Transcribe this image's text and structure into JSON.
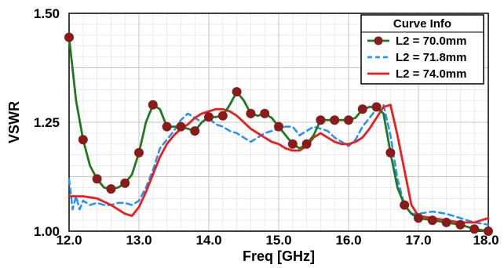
{
  "chart_data": {
    "type": "line",
    "title": "",
    "xlabel": "Freq [GHz]",
    "ylabel": "VSWR",
    "xlim": [
      12.0,
      18.0
    ],
    "ylim": [
      1.0,
      1.5
    ],
    "x_ticks": [
      "12.0",
      "13.0",
      "14.0",
      "15.0",
      "16.0",
      "17.0",
      "18.0"
    ],
    "y_ticks": [
      "1.00",
      "1.25",
      "1.50"
    ],
    "grid": true,
    "legend": {
      "title": "Curve Info",
      "position": "top-right"
    },
    "series": [
      {
        "name": "L2 = 70.0mm",
        "color": "#1e7a1e",
        "marker_color": "#8b1a1a",
        "style": "solid-with-markers",
        "points": [
          [
            12.0,
            1.445
          ],
          [
            12.1,
            1.3
          ],
          [
            12.2,
            1.21
          ],
          [
            12.3,
            1.15
          ],
          [
            12.4,
            1.12
          ],
          [
            12.5,
            1.1
          ],
          [
            12.6,
            1.097
          ],
          [
            12.7,
            1.1
          ],
          [
            12.8,
            1.11
          ],
          [
            12.9,
            1.13
          ],
          [
            13.0,
            1.18
          ],
          [
            13.1,
            1.25
          ],
          [
            13.2,
            1.29
          ],
          [
            13.3,
            1.28
          ],
          [
            13.4,
            1.24
          ],
          [
            13.5,
            1.24
          ],
          [
            13.6,
            1.24
          ],
          [
            13.7,
            1.235
          ],
          [
            13.8,
            1.23
          ],
          [
            13.9,
            1.25
          ],
          [
            14.0,
            1.262
          ],
          [
            14.1,
            1.262
          ],
          [
            14.2,
            1.265
          ],
          [
            14.3,
            1.29
          ],
          [
            14.4,
            1.32
          ],
          [
            14.5,
            1.3
          ],
          [
            14.6,
            1.27
          ],
          [
            14.7,
            1.265
          ],
          [
            14.8,
            1.27
          ],
          [
            14.9,
            1.26
          ],
          [
            15.0,
            1.24
          ],
          [
            15.1,
            1.22
          ],
          [
            15.2,
            1.2
          ],
          [
            15.3,
            1.19
          ],
          [
            15.4,
            1.2
          ],
          [
            15.5,
            1.22
          ],
          [
            15.6,
            1.255
          ],
          [
            15.7,
            1.255
          ],
          [
            15.8,
            1.255
          ],
          [
            15.9,
            1.255
          ],
          [
            16.0,
            1.255
          ],
          [
            16.1,
            1.26
          ],
          [
            16.2,
            1.28
          ],
          [
            16.3,
            1.285
          ],
          [
            16.4,
            1.285
          ],
          [
            16.5,
            1.27
          ],
          [
            16.6,
            1.18
          ],
          [
            16.7,
            1.1
          ],
          [
            16.8,
            1.06
          ],
          [
            16.9,
            1.04
          ],
          [
            17.0,
            1.03
          ],
          [
            17.2,
            1.025
          ],
          [
            17.4,
            1.02
          ],
          [
            17.6,
            1.015
          ],
          [
            17.8,
            1.005
          ],
          [
            18.0,
            1.0
          ]
        ],
        "markers": [
          [
            12.0,
            1.445
          ],
          [
            12.2,
            1.21
          ],
          [
            12.4,
            1.12
          ],
          [
            12.6,
            1.097
          ],
          [
            12.8,
            1.11
          ],
          [
            13.0,
            1.18
          ],
          [
            13.2,
            1.29
          ],
          [
            13.4,
            1.24
          ],
          [
            13.6,
            1.24
          ],
          [
            13.8,
            1.23
          ],
          [
            14.0,
            1.262
          ],
          [
            14.2,
            1.265
          ],
          [
            14.4,
            1.32
          ],
          [
            14.6,
            1.27
          ],
          [
            14.8,
            1.27
          ],
          [
            15.0,
            1.24
          ],
          [
            15.2,
            1.2
          ],
          [
            15.4,
            1.2
          ],
          [
            15.6,
            1.255
          ],
          [
            15.8,
            1.255
          ],
          [
            16.0,
            1.255
          ],
          [
            16.2,
            1.28
          ],
          [
            16.4,
            1.285
          ],
          [
            16.6,
            1.18
          ],
          [
            16.8,
            1.06
          ],
          [
            17.0,
            1.03
          ],
          [
            17.2,
            1.025
          ],
          [
            17.4,
            1.02
          ],
          [
            17.6,
            1.015
          ],
          [
            17.8,
            1.005
          ],
          [
            18.0,
            1.0
          ]
        ]
      },
      {
        "name": "L2 = 71.8mm",
        "color": "#1e90ff",
        "style": "dashed",
        "points": [
          [
            12.0,
            1.12
          ],
          [
            12.05,
            1.05
          ],
          [
            12.1,
            1.08
          ],
          [
            12.15,
            1.05
          ],
          [
            12.2,
            1.07
          ],
          [
            12.3,
            1.06
          ],
          [
            12.4,
            1.065
          ],
          [
            12.5,
            1.06
          ],
          [
            12.6,
            1.06
          ],
          [
            12.7,
            1.065
          ],
          [
            12.8,
            1.065
          ],
          [
            12.9,
            1.06
          ],
          [
            13.0,
            1.07
          ],
          [
            13.1,
            1.1
          ],
          [
            13.2,
            1.14
          ],
          [
            13.3,
            1.19
          ],
          [
            13.4,
            1.21
          ],
          [
            13.5,
            1.23
          ],
          [
            13.6,
            1.255
          ],
          [
            13.7,
            1.27
          ],
          [
            13.8,
            1.26
          ],
          [
            13.9,
            1.25
          ],
          [
            14.0,
            1.26
          ],
          [
            14.1,
            1.245
          ],
          [
            14.2,
            1.24
          ],
          [
            14.3,
            1.23
          ],
          [
            14.4,
            1.225
          ],
          [
            14.5,
            1.215
          ],
          [
            14.6,
            1.205
          ],
          [
            14.7,
            1.215
          ],
          [
            14.8,
            1.225
          ],
          [
            14.9,
            1.23
          ],
          [
            15.0,
            1.235
          ],
          [
            15.1,
            1.24
          ],
          [
            15.2,
            1.24
          ],
          [
            15.3,
            1.22
          ],
          [
            15.4,
            1.23
          ],
          [
            15.5,
            1.24
          ],
          [
            15.6,
            1.235
          ],
          [
            15.7,
            1.23
          ],
          [
            15.8,
            1.215
          ],
          [
            15.9,
            1.205
          ],
          [
            16.0,
            1.195
          ],
          [
            16.1,
            1.21
          ],
          [
            16.2,
            1.24
          ],
          [
            16.3,
            1.26
          ],
          [
            16.4,
            1.28
          ],
          [
            16.5,
            1.29
          ],
          [
            16.6,
            1.22
          ],
          [
            16.7,
            1.12
          ],
          [
            16.8,
            1.06
          ],
          [
            16.9,
            1.04
          ],
          [
            17.0,
            1.04
          ],
          [
            17.2,
            1.045
          ],
          [
            17.4,
            1.04
          ],
          [
            17.6,
            1.03
          ],
          [
            17.8,
            1.02
          ],
          [
            18.0,
            1.015
          ]
        ]
      },
      {
        "name": "L2 = 74.0mm",
        "color": "#ee1c1c",
        "style": "solid",
        "points": [
          [
            12.0,
            1.08
          ],
          [
            12.2,
            1.08
          ],
          [
            12.4,
            1.075
          ],
          [
            12.6,
            1.06
          ],
          [
            12.8,
            1.04
          ],
          [
            12.9,
            1.035
          ],
          [
            13.0,
            1.055
          ],
          [
            13.1,
            1.09
          ],
          [
            13.2,
            1.13
          ],
          [
            13.3,
            1.17
          ],
          [
            13.4,
            1.2
          ],
          [
            13.5,
            1.22
          ],
          [
            13.6,
            1.235
          ],
          [
            13.7,
            1.245
          ],
          [
            13.8,
            1.26
          ],
          [
            13.9,
            1.27
          ],
          [
            14.0,
            1.275
          ],
          [
            14.1,
            1.28
          ],
          [
            14.2,
            1.28
          ],
          [
            14.3,
            1.275
          ],
          [
            14.4,
            1.265
          ],
          [
            14.5,
            1.25
          ],
          [
            14.6,
            1.235
          ],
          [
            14.7,
            1.225
          ],
          [
            14.8,
            1.215
          ],
          [
            14.9,
            1.205
          ],
          [
            15.0,
            1.2
          ],
          [
            15.1,
            1.19
          ],
          [
            15.2,
            1.185
          ],
          [
            15.3,
            1.185
          ],
          [
            15.4,
            1.195
          ],
          [
            15.5,
            1.215
          ],
          [
            15.6,
            1.225
          ],
          [
            15.7,
            1.215
          ],
          [
            15.8,
            1.205
          ],
          [
            15.9,
            1.2
          ],
          [
            16.0,
            1.2
          ],
          [
            16.1,
            1.205
          ],
          [
            16.2,
            1.215
          ],
          [
            16.3,
            1.235
          ],
          [
            16.4,
            1.26
          ],
          [
            16.5,
            1.285
          ],
          [
            16.6,
            1.29
          ],
          [
            16.7,
            1.22
          ],
          [
            16.8,
            1.14
          ],
          [
            16.9,
            1.06
          ],
          [
            17.0,
            1.035
          ],
          [
            17.2,
            1.03
          ],
          [
            17.4,
            1.025
          ],
          [
            17.6,
            1.02
          ],
          [
            17.8,
            1.02
          ],
          [
            18.0,
            1.03
          ]
        ]
      }
    ]
  }
}
